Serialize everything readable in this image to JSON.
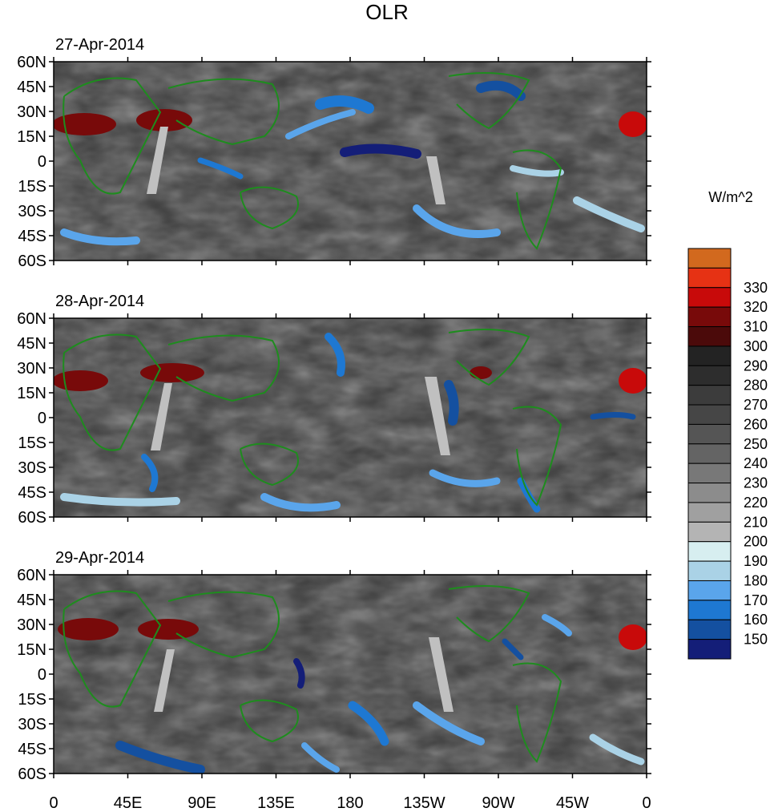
{
  "title": "OLR",
  "units": "W/m^2",
  "panels": [
    {
      "date": "27-Apr-2014"
    },
    {
      "date": "28-Apr-2014"
    },
    {
      "date": "29-Apr-2014"
    }
  ],
  "lat_labels": [
    "60N",
    "45N",
    "30N",
    "15N",
    "0",
    "15S",
    "30S",
    "45S",
    "60S"
  ],
  "lon_labels": [
    "0",
    "45E",
    "90E",
    "135E",
    "180",
    "135W",
    "90W",
    "45W",
    "0"
  ],
  "colorbar": {
    "labels": [
      "150",
      "160",
      "170",
      "180",
      "190",
      "200",
      "210",
      "220",
      "230",
      "240",
      "250",
      "260",
      "270",
      "280",
      "290",
      "300",
      "310",
      "320",
      "330"
    ],
    "colors": [
      "#141e78",
      "#1450a0",
      "#1e78d2",
      "#5aa5eb",
      "#aad2e6",
      "#d7eef0",
      "#b4b4b4",
      "#a0a0a0",
      "#8c8c8c",
      "#787878",
      "#646464",
      "#555555",
      "#464646",
      "#3c3c3c",
      "#2d2d2d",
      "#232323",
      "#4b0a0a",
      "#780a0a",
      "#c80a0a",
      "#e63214",
      "#d2691e"
    ]
  },
  "map_colors": {
    "coast": "#1e8c1e",
    "missing": "#c0c0c0"
  }
}
